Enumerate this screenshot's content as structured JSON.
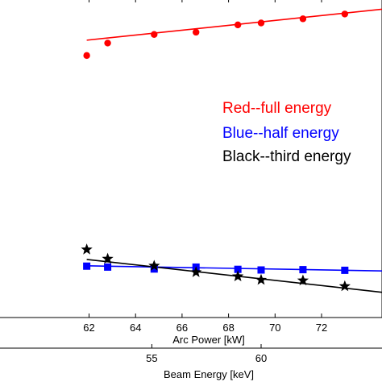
{
  "chart_data": {
    "type": "line",
    "title": "",
    "xlabel": "Arc Power [kW]",
    "x2label": "Beam Energy [keV]",
    "ylabel": "",
    "xlim": [
      58.1,
      74.6
    ],
    "x_ticks": [
      62,
      64,
      66,
      68,
      70,
      72
    ],
    "x2_ticks": [
      {
        "label": "55",
        "at_arc_power": 64.7
      },
      {
        "label": "60",
        "at_arc_power": 69.4
      }
    ],
    "ylim": [
      0,
      100
    ],
    "grid": false,
    "legend": {
      "placement": "right",
      "entries": [
        {
          "text": "Red--full energy",
          "color": "#ff0000"
        },
        {
          "text": "Blue--half energy",
          "color": "#0000ff"
        },
        {
          "text": "Black--third energy",
          "color": "#000000"
        }
      ]
    },
    "series": [
      {
        "color": "#ff0000",
        "marker": "circle",
        "points": [
          [
            61.9,
            82.1
          ],
          [
            62.8,
            86.0
          ],
          [
            64.8,
            88.7
          ],
          [
            66.6,
            89.4
          ],
          [
            68.4,
            91.7
          ],
          [
            69.4,
            92.3
          ],
          [
            71.2,
            93.6
          ],
          [
            73.0,
            95.1
          ]
        ],
        "fit": [
          [
            61.9,
            86.9
          ],
          [
            74.6,
            96.6
          ]
        ]
      },
      {
        "color": "#0000ff",
        "marker": "square",
        "points": [
          [
            61.9,
            16.1
          ],
          [
            62.8,
            15.8
          ],
          [
            64.8,
            15.2
          ],
          [
            66.6,
            15.8
          ],
          [
            68.4,
            15.1
          ],
          [
            69.4,
            14.9
          ],
          [
            71.2,
            15.0
          ],
          [
            73.0,
            14.8
          ]
        ],
        "fit": [
          [
            61.9,
            16.2
          ],
          [
            74.6,
            14.6
          ]
        ]
      },
      {
        "color": "#000000",
        "marker": "star",
        "points": [
          [
            61.9,
            21.3
          ],
          [
            62.8,
            18.4
          ],
          [
            64.8,
            16.2
          ],
          [
            66.6,
            14.2
          ],
          [
            68.4,
            12.9
          ],
          [
            69.4,
            11.8
          ],
          [
            71.2,
            11.6
          ],
          [
            73.0,
            9.8
          ]
        ],
        "fit": [
          [
            61.9,
            18.2
          ],
          [
            74.6,
            7.9
          ]
        ]
      }
    ]
  }
}
